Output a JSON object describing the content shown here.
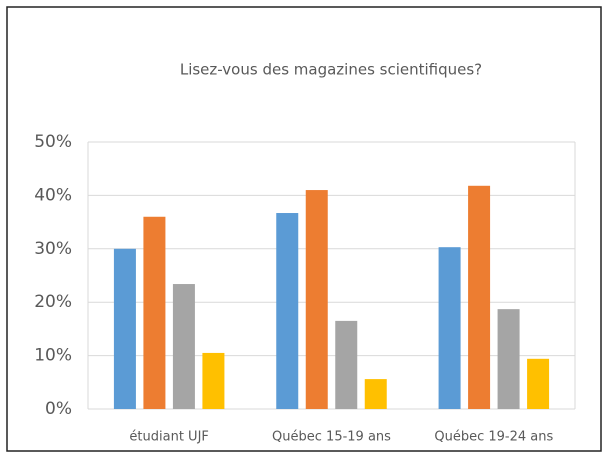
{
  "chart_data": {
    "type": "bar",
    "title": "Lisez-vous des magazines scientifiques?",
    "categories": [
      "étudiant UJF",
      "Québec 15-19 ans",
      "Québec 19-24 ans"
    ],
    "series": [
      {
        "color": "#5b9bd5",
        "values": [
          30,
          36.7,
          30.3
        ]
      },
      {
        "color": "#ed7d31",
        "values": [
          36,
          41,
          41.8
        ]
      },
      {
        "color": "#a5a5a5",
        "values": [
          23.4,
          16.5,
          18.7
        ]
      },
      {
        "color": "#ffc000",
        "values": [
          10.5,
          5.6,
          9.4
        ]
      }
    ],
    "ylim": [
      0,
      50
    ],
    "yticks": [
      {
        "value": 0,
        "label": "0%"
      },
      {
        "value": 10,
        "label": "10%"
      },
      {
        "value": 20,
        "label": "20%"
      },
      {
        "value": 30,
        "label": "30%"
      },
      {
        "value": 40,
        "label": "40%"
      },
      {
        "value": 50,
        "label": "50%"
      }
    ],
    "grid": true
  }
}
